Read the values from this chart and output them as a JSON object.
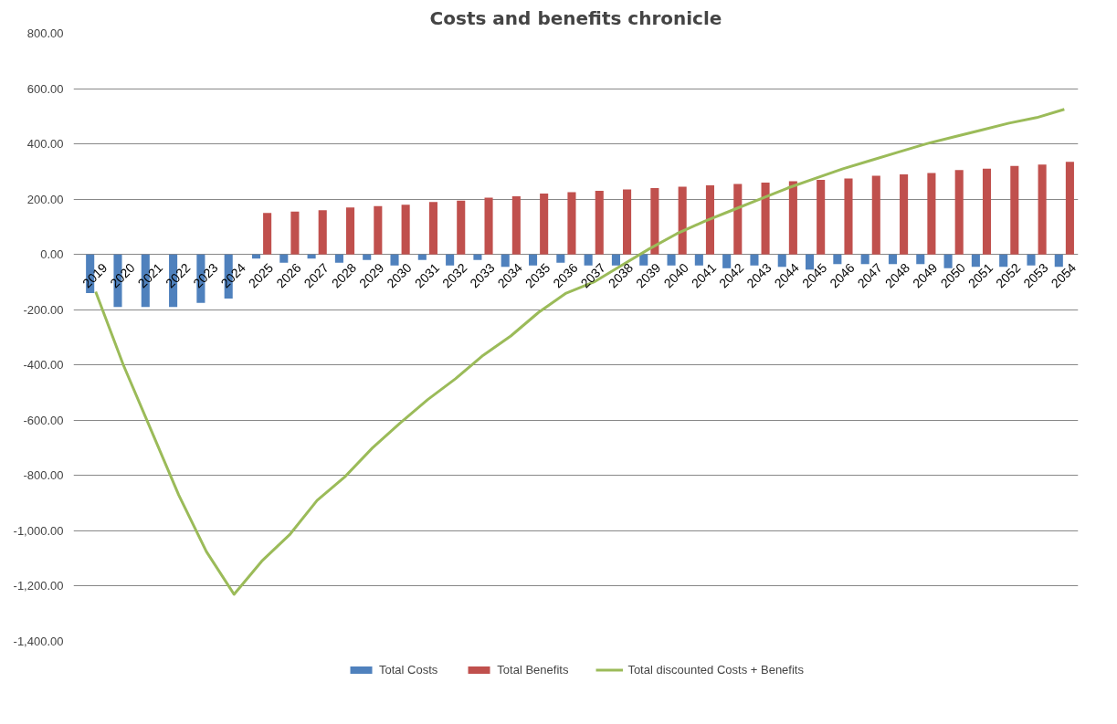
{
  "chart_data": {
    "type": "bar",
    "title": "Costs and benefits chronicle",
    "categories": [
      "2019",
      "2020",
      "2021",
      "2022",
      "2023",
      "2024",
      "2025",
      "2026",
      "2027",
      "2028",
      "2029",
      "2030",
      "2031",
      "2032",
      "2033",
      "2034",
      "2035",
      "2036",
      "2037",
      "2038",
      "2039",
      "2040",
      "2041",
      "2042",
      "2043",
      "2044",
      "2045",
      "2046",
      "2047",
      "2048",
      "2049",
      "2050",
      "2051",
      "2052",
      "2053",
      "2054"
    ],
    "series": [
      {
        "name": "Total Costs",
        "color": "#4f81bd",
        "values": [
          -140,
          -190,
          -190,
          -190,
          -175,
          -160,
          -15,
          -30,
          -15,
          -30,
          -20,
          -40,
          -20,
          -40,
          -20,
          -45,
          -40,
          -30,
          -40,
          -40,
          -40,
          -40,
          -40,
          -50,
          -40,
          -45,
          -55,
          -35,
          -35,
          -35,
          -35,
          -50,
          -45,
          -45,
          -40,
          -45
        ]
      },
      {
        "name": "Total Benefits",
        "color": "#c0504d",
        "values": [
          null,
          null,
          null,
          null,
          null,
          null,
          150,
          155,
          160,
          170,
          175,
          180,
          190,
          195,
          205,
          210,
          220,
          225,
          230,
          235,
          240,
          245,
          250,
          255,
          260,
          265,
          270,
          275,
          285,
          290,
          295,
          305,
          310,
          320,
          325,
          335
        ]
      },
      {
        "name": "Total discounted Costs + Benefits",
        "type": "line",
        "color": "#9bbb59",
        "values": [
          -135,
          -400,
          -635,
          -870,
          -1075,
          -1230,
          -1110,
          -1015,
          -890,
          -805,
          -700,
          -610,
          -525,
          -450,
          -365,
          -295,
          -210,
          -140,
          -100,
          -40,
          20,
          75,
          120,
          160,
          200,
          240,
          275,
          310,
          340,
          370,
          400,
          425,
          450,
          475,
          495,
          525
        ]
      }
    ],
    "ylim": [
      -1400,
      800
    ],
    "yticks": [
      {
        "value": -1400,
        "label": "-1,400.00"
      },
      {
        "value": -1200,
        "label": "-1,200.00"
      },
      {
        "value": -1000,
        "label": "-1,000.00"
      },
      {
        "value": -800,
        "label": "-800.00"
      },
      {
        "value": -600,
        "label": "-600.00"
      },
      {
        "value": -400,
        "label": "-400.00"
      },
      {
        "value": -200,
        "label": "-200.00"
      },
      {
        "value": 0,
        "label": "0.00"
      },
      {
        "value": 200,
        "label": "200.00"
      },
      {
        "value": 400,
        "label": "400.00"
      },
      {
        "value": 600,
        "label": "600.00"
      },
      {
        "value": 800,
        "label": "800.00"
      }
    ],
    "grid": "y",
    "legend": "bottom"
  }
}
